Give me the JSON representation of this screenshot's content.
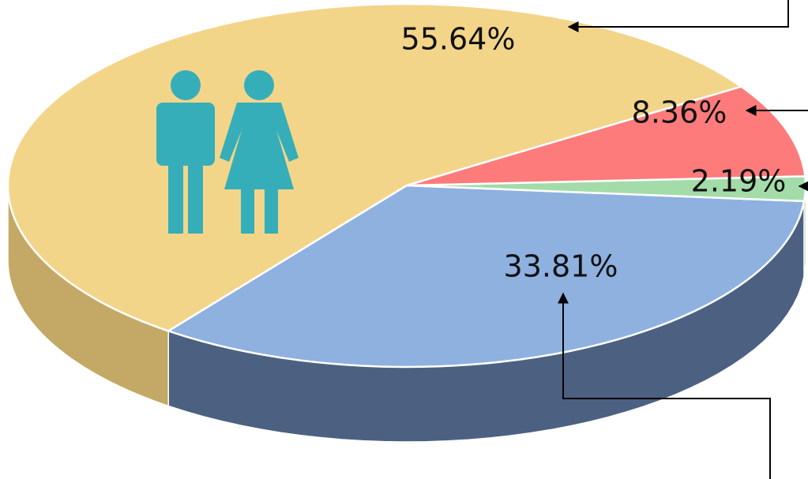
{
  "chart_data": {
    "type": "pie3d",
    "categories": [
      null,
      null,
      null,
      null
    ],
    "values": [
      55.64,
      33.81,
      2.19,
      8.36
    ],
    "value_labels": [
      "55.64%",
      "33.81%",
      "2.19%",
      "8.36%"
    ],
    "colors": [
      "#f3d58a",
      "#8eb1e0",
      "#a3dca8",
      "#fd7b7b"
    ],
    "side_colors": [
      "#c4a866",
      "#4c6182",
      "#5f8f63",
      "#b85a5a"
    ]
  }
}
